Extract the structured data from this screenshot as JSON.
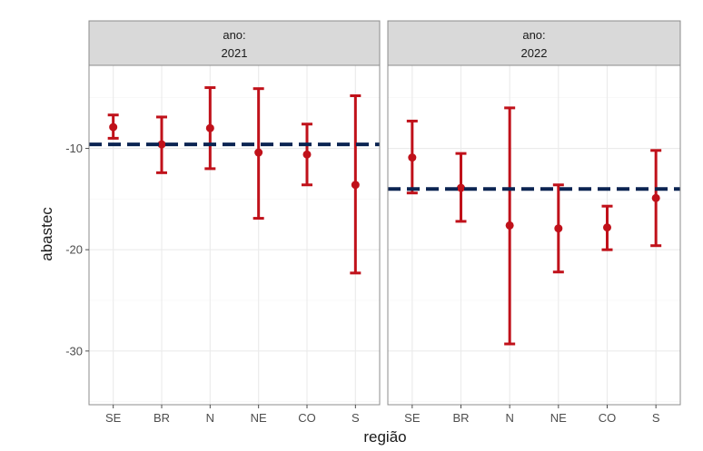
{
  "chart_data": {
    "type": "errorbar",
    "facet_prefix": "ano:",
    "xlabel": "região",
    "ylabel": "abastec",
    "ylim": [
      -35.3,
      -1.8
    ],
    "yticks": [
      -30,
      -20,
      -10
    ],
    "categories": [
      "SE",
      "BR",
      "N",
      "NE",
      "CO",
      "S"
    ],
    "grid": true,
    "colors": {
      "point": "#c0111a",
      "reference_line": "#0b2452",
      "strip_fill": "#d9d9d9",
      "panel_border": "#8c8c8c",
      "grid": "#ebebeb"
    },
    "panels": [
      {
        "facet_value": "2021",
        "reference_line": -9.6,
        "points": [
          {
            "x": "SE",
            "y": -7.9,
            "ymin": -9.0,
            "ymax": -6.7
          },
          {
            "x": "BR",
            "y": -9.6,
            "ymin": -12.4,
            "ymax": -6.9
          },
          {
            "x": "N",
            "y": -8.0,
            "ymin": -12.0,
            "ymax": -4.0
          },
          {
            "x": "NE",
            "y": -10.4,
            "ymin": -16.9,
            "ymax": -4.1
          },
          {
            "x": "CO",
            "y": -10.6,
            "ymin": -13.6,
            "ymax": -7.6
          },
          {
            "x": "S",
            "y": -13.6,
            "ymin": -22.3,
            "ymax": -4.8
          }
        ]
      },
      {
        "facet_value": "2022",
        "reference_line": -14.0,
        "points": [
          {
            "x": "SE",
            "y": -10.9,
            "ymin": -14.4,
            "ymax": -7.3
          },
          {
            "x": "BR",
            "y": -13.9,
            "ymin": -17.2,
            "ymax": -10.5
          },
          {
            "x": "N",
            "y": -17.6,
            "ymin": -29.3,
            "ymax": -6.0
          },
          {
            "x": "NE",
            "y": -17.9,
            "ymin": -22.2,
            "ymax": -13.6
          },
          {
            "x": "CO",
            "y": -17.8,
            "ymin": -20.0,
            "ymax": -15.7
          },
          {
            "x": "S",
            "y": -14.9,
            "ymin": -19.6,
            "ymax": -10.2
          }
        ]
      }
    ]
  }
}
